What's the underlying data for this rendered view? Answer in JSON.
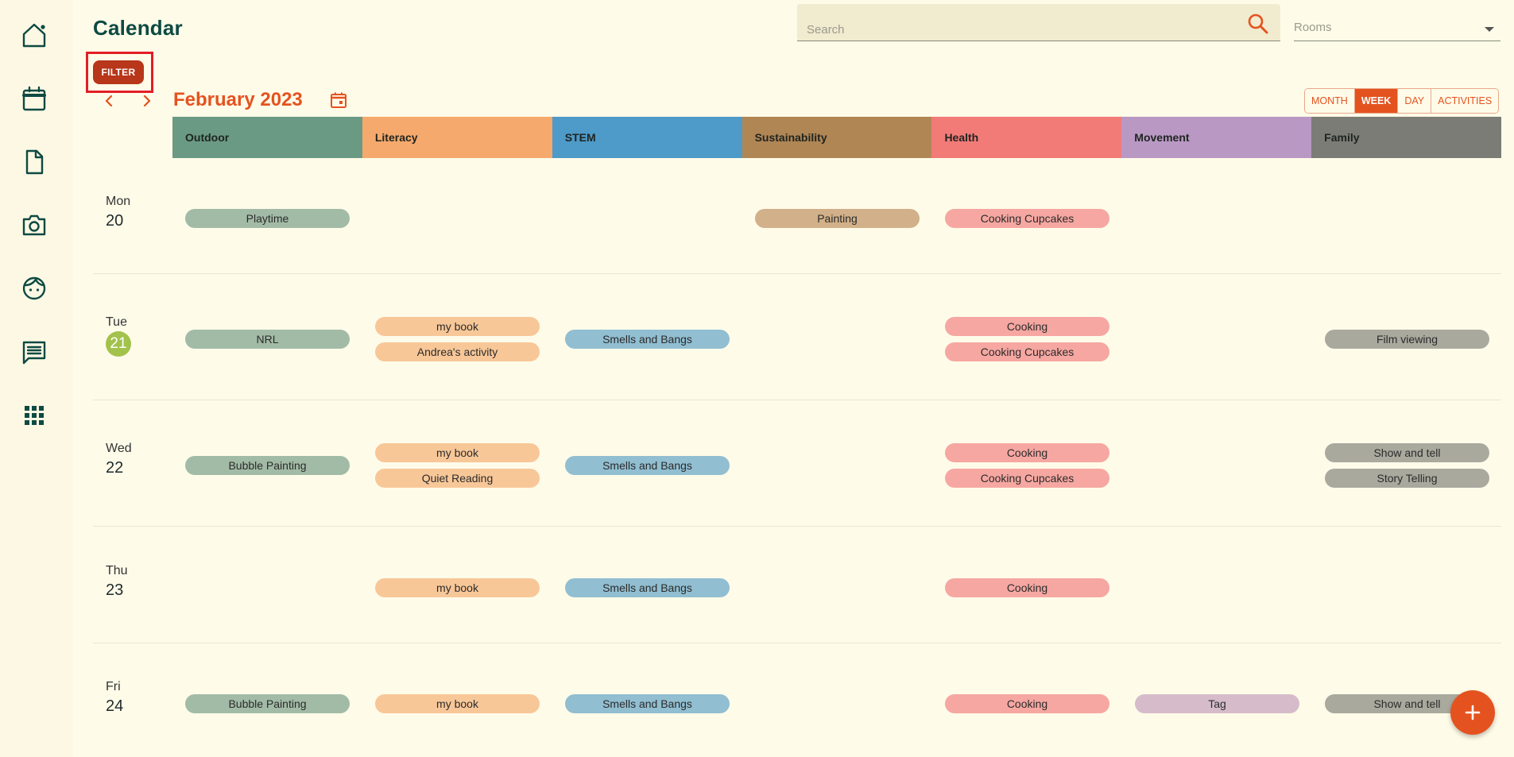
{
  "sidebar": {
    "items": [
      {
        "icon": "home-icon",
        "name": "sidebar-item-home"
      },
      {
        "icon": "calendar-icon",
        "name": "sidebar-item-calendar"
      },
      {
        "icon": "document-icon",
        "name": "sidebar-item-documents"
      },
      {
        "icon": "camera-icon",
        "name": "sidebar-item-camera"
      },
      {
        "icon": "child-face-icon",
        "name": "sidebar-item-children"
      },
      {
        "icon": "chat-icon",
        "name": "sidebar-item-messages"
      },
      {
        "icon": "grid-apps-icon",
        "name": "sidebar-item-apps"
      }
    ]
  },
  "header": {
    "title": "Calendar",
    "search_placeholder": "Search",
    "rooms_placeholder": "Rooms",
    "filter_label": "FILTER"
  },
  "calendar": {
    "month_label": "February 2023",
    "views": [
      "MONTH",
      "WEEK",
      "DAY",
      "ACTIVITIES"
    ],
    "active_view": "WEEK",
    "categories": [
      {
        "label": "Outdoor",
        "color": "#6a9a84",
        "pill": "#a2bba6"
      },
      {
        "label": "Literacy",
        "color": "#f6a96c",
        "pill": "#f8c798"
      },
      {
        "label": "STEM",
        "color": "#4e9ac8",
        "pill": "#91bed1"
      },
      {
        "label": "Sustainability",
        "color": "#b08655",
        "pill": "#d2b089"
      },
      {
        "label": "Health",
        "color": "#f27b78",
        "pill": "#f6a7a1"
      },
      {
        "label": "Movement",
        "color": "#b998c4",
        "pill": "#d6bccb"
      },
      {
        "label": "Family",
        "color": "#7c7c76",
        "pill": "#a9a99e"
      }
    ],
    "days": [
      {
        "name": "Mon",
        "num": "20",
        "today": false,
        "events": [
          [
            "Playtime"
          ],
          [],
          [],
          [
            "Painting"
          ],
          [
            "Cooking Cupcakes"
          ],
          [],
          []
        ]
      },
      {
        "name": "Tue",
        "num": "21",
        "today": true,
        "events": [
          [
            "NRL"
          ],
          [
            "my book",
            "Andrea's activity"
          ],
          [
            "Smells and Bangs"
          ],
          [],
          [
            "Cooking",
            "Cooking Cupcakes"
          ],
          [],
          [
            "Film viewing"
          ]
        ]
      },
      {
        "name": "Wed",
        "num": "22",
        "today": false,
        "events": [
          [
            "Bubble Painting"
          ],
          [
            "my book",
            "Quiet Reading"
          ],
          [
            "Smells and Bangs"
          ],
          [],
          [
            "Cooking",
            "Cooking Cupcakes"
          ],
          [],
          [
            "Show and tell",
            "Story Telling"
          ]
        ]
      },
      {
        "name": "Thu",
        "num": "23",
        "today": false,
        "events": [
          [],
          [
            "my book"
          ],
          [
            "Smells and Bangs"
          ],
          [],
          [
            "Cooking"
          ],
          [],
          []
        ]
      },
      {
        "name": "Fri",
        "num": "24",
        "today": false,
        "events": [
          [
            "Bubble Painting"
          ],
          [
            "my book"
          ],
          [
            "Smells and Bangs"
          ],
          [],
          [
            "Cooking"
          ],
          [
            "Tag"
          ],
          [
            "Show and tell"
          ]
        ]
      }
    ]
  },
  "fab": {
    "icon": "plus-icon"
  }
}
